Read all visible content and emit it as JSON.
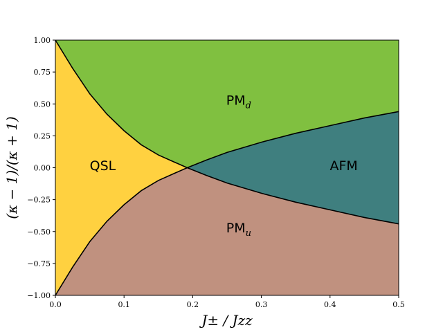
{
  "chart_data": {
    "type": "area",
    "title": "",
    "xlabel": "J± / Jzz",
    "ylabel": "(κ − 1)/(κ + 1)",
    "xlim": [
      0.0,
      0.5
    ],
    "ylim": [
      -1.0,
      1.0
    ],
    "xticks": [
      0.0,
      0.1,
      0.2,
      0.3,
      0.4,
      0.5
    ],
    "xtick_labels": [
      "0.0",
      "0.1",
      "0.2",
      "0.3",
      "0.4",
      "0.5"
    ],
    "yticks": [
      1.0,
      0.75,
      0.5,
      0.25,
      0.0,
      -0.25,
      -0.5,
      -0.75,
      -1.0
    ],
    "ytick_labels": [
      "1.00",
      "0.75",
      "0.50",
      "0.25",
      "0.00",
      "−0.25",
      "−0.50",
      "−0.75",
      "−1.00"
    ],
    "grid": false,
    "boundaries": {
      "upper_decay": [
        [
          0.0,
          1.0
        ],
        [
          0.025,
          0.78
        ],
        [
          0.05,
          0.58
        ],
        [
          0.075,
          0.42
        ],
        [
          0.1,
          0.29
        ],
        [
          0.125,
          0.18
        ],
        [
          0.15,
          0.1
        ],
        [
          0.175,
          0.04
        ],
        [
          0.192,
          0.0
        ]
      ],
      "lower_decay": [
        [
          0.0,
          -1.0
        ],
        [
          0.025,
          -0.78
        ],
        [
          0.05,
          -0.58
        ],
        [
          0.075,
          -0.42
        ],
        [
          0.1,
          -0.29
        ],
        [
          0.125,
          -0.18
        ],
        [
          0.15,
          -0.1
        ],
        [
          0.175,
          -0.04
        ],
        [
          0.192,
          0.0
        ]
      ],
      "upper_grow": [
        [
          0.192,
          0.0
        ],
        [
          0.22,
          0.06
        ],
        [
          0.25,
          0.12
        ],
        [
          0.3,
          0.2
        ],
        [
          0.35,
          0.27
        ],
        [
          0.4,
          0.33
        ],
        [
          0.45,
          0.39
        ],
        [
          0.5,
          0.44
        ]
      ],
      "lower_grow": [
        [
          0.192,
          0.0
        ],
        [
          0.22,
          -0.06
        ],
        [
          0.25,
          -0.12
        ],
        [
          0.3,
          -0.2
        ],
        [
          0.35,
          -0.27
        ],
        [
          0.4,
          -0.33
        ],
        [
          0.45,
          -0.39
        ],
        [
          0.5,
          -0.44
        ]
      ]
    },
    "regions": [
      {
        "name": "QSL",
        "color": "#ffd140",
        "label": "QSL",
        "sub": "",
        "label_at": [
          0.069,
          0.02
        ]
      },
      {
        "name": "PMd",
        "color": "#80c040",
        "label": "PM",
        "sub": "d",
        "label_at": [
          0.267,
          0.53
        ]
      },
      {
        "name": "AFM",
        "color": "#3f7f7f",
        "label": "AFM",
        "sub": "",
        "label_at": [
          0.42,
          0.02
        ]
      },
      {
        "name": "PMu",
        "color": "#c0917f",
        "label": "PM",
        "sub": "u",
        "label_at": [
          0.267,
          -0.47
        ]
      }
    ],
    "line_color": "#000000"
  }
}
